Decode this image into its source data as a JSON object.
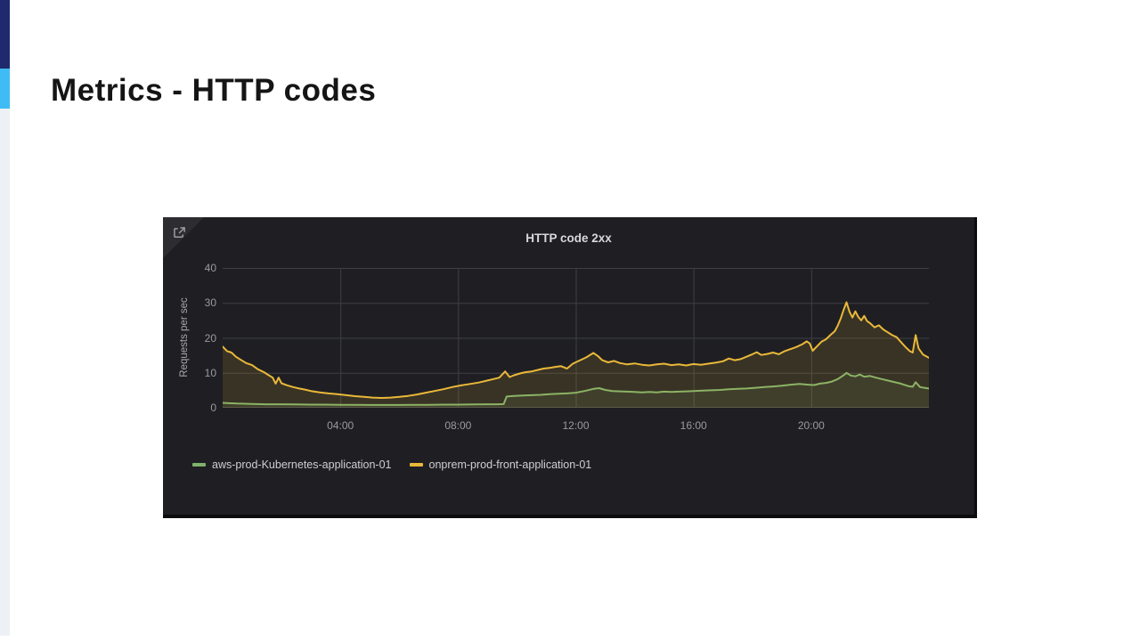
{
  "slide": {
    "title": "Metrics - HTTP codes"
  },
  "accent_bar": {
    "navy": "#1e2a6d",
    "blue": "#3fbcf4",
    "gray": "#edf0f4"
  },
  "panel": {
    "background": "#1f1f23",
    "corner_icon": "external-link-icon",
    "title": "HTTP code 2xx"
  },
  "chart_data": {
    "type": "area",
    "title": "HTTP code 2xx",
    "xlabel": "",
    "ylabel": "Requests per sec",
    "x_unit": "hours",
    "xlim": [
      0,
      24
    ],
    "ylim": [
      0,
      40
    ],
    "grid": true,
    "legend_position": "bottom-left",
    "y_ticks": [
      {
        "value": 0,
        "label": "0"
      },
      {
        "value": 10,
        "label": "10"
      },
      {
        "value": 20,
        "label": "20"
      },
      {
        "value": 30,
        "label": "30"
      },
      {
        "value": 40,
        "label": "40"
      }
    ],
    "x_ticks": [
      {
        "value": 4,
        "label": "04:00"
      },
      {
        "value": 8,
        "label": "08:00"
      },
      {
        "value": 12,
        "label": "12:00"
      },
      {
        "value": 16,
        "label": "16:00"
      },
      {
        "value": 20,
        "label": "20:00"
      }
    ],
    "grid_color": "#3e3f44",
    "axis_color": "#44454a",
    "tick_color": "#9a9b9e",
    "series": [
      {
        "name": "aws-prod-Kubernetes-application-01",
        "color": "#7eb26d",
        "fill_opacity": 0.1,
        "points": [
          [
            0,
            1.4
          ],
          [
            0.5,
            1.2
          ],
          [
            1,
            1.1
          ],
          [
            1.5,
            1.0
          ],
          [
            2,
            1.0
          ],
          [
            2.5,
            0.95
          ],
          [
            3,
            0.9
          ],
          [
            3.5,
            0.9
          ],
          [
            4,
            0.85
          ],
          [
            4.5,
            0.85
          ],
          [
            5,
            0.8
          ],
          [
            5.5,
            0.8
          ],
          [
            6,
            0.8
          ],
          [
            6.5,
            0.85
          ],
          [
            7,
            0.85
          ],
          [
            7.5,
            0.9
          ],
          [
            8,
            0.9
          ],
          [
            8.5,
            0.95
          ],
          [
            9,
            1.0
          ],
          [
            9.3,
            1.0
          ],
          [
            9.55,
            1.05
          ],
          [
            9.65,
            3.2
          ],
          [
            9.9,
            3.4
          ],
          [
            10.2,
            3.5
          ],
          [
            10.5,
            3.6
          ],
          [
            10.8,
            3.7
          ],
          [
            11.1,
            3.9
          ],
          [
            11.4,
            4.0
          ],
          [
            11.7,
            4.1
          ],
          [
            12.0,
            4.3
          ],
          [
            12.3,
            4.8
          ],
          [
            12.6,
            5.4
          ],
          [
            12.8,
            5.6
          ],
          [
            13.0,
            5.1
          ],
          [
            13.25,
            4.8
          ],
          [
            13.5,
            4.7
          ],
          [
            13.75,
            4.6
          ],
          [
            14,
            4.5
          ],
          [
            14.25,
            4.4
          ],
          [
            14.5,
            4.5
          ],
          [
            14.75,
            4.4
          ],
          [
            15,
            4.6
          ],
          [
            15.25,
            4.5
          ],
          [
            15.5,
            4.6
          ],
          [
            15.75,
            4.7
          ],
          [
            16,
            4.8
          ],
          [
            16.3,
            4.9
          ],
          [
            16.6,
            5.0
          ],
          [
            16.9,
            5.1
          ],
          [
            17.2,
            5.3
          ],
          [
            17.5,
            5.4
          ],
          [
            17.8,
            5.5
          ],
          [
            18.1,
            5.7
          ],
          [
            18.4,
            5.9
          ],
          [
            18.7,
            6.1
          ],
          [
            19.0,
            6.3
          ],
          [
            19.3,
            6.6
          ],
          [
            19.6,
            6.8
          ],
          [
            19.9,
            6.6
          ],
          [
            20.1,
            6.5
          ],
          [
            20.3,
            6.9
          ],
          [
            20.5,
            7.1
          ],
          [
            20.7,
            7.5
          ],
          [
            20.9,
            8.2
          ],
          [
            21.1,
            9.3
          ],
          [
            21.2,
            10.0
          ],
          [
            21.35,
            9.2
          ],
          [
            21.5,
            9.0
          ],
          [
            21.65,
            9.5
          ],
          [
            21.8,
            8.9
          ],
          [
            22.0,
            9.1
          ],
          [
            22.2,
            8.6
          ],
          [
            22.4,
            8.2
          ],
          [
            22.6,
            7.8
          ],
          [
            22.8,
            7.4
          ],
          [
            23.0,
            7.0
          ],
          [
            23.15,
            6.6
          ],
          [
            23.3,
            6.2
          ],
          [
            23.45,
            6.0
          ],
          [
            23.55,
            7.3
          ],
          [
            23.7,
            5.9
          ],
          [
            23.85,
            5.7
          ],
          [
            24,
            5.5
          ]
        ]
      },
      {
        "name": "onprem-prod-front-application-01",
        "color": "#eab839",
        "fill_opacity": 0.13,
        "points": [
          [
            0,
            17.5
          ],
          [
            0.15,
            16.2
          ],
          [
            0.3,
            15.8
          ],
          [
            0.45,
            14.6
          ],
          [
            0.6,
            13.8
          ],
          [
            0.8,
            12.8
          ],
          [
            1.0,
            12.2
          ],
          [
            1.2,
            11.0
          ],
          [
            1.4,
            10.2
          ],
          [
            1.55,
            9.4
          ],
          [
            1.7,
            8.6
          ],
          [
            1.8,
            6.9
          ],
          [
            1.9,
            8.6
          ],
          [
            2.0,
            7.0
          ],
          [
            2.2,
            6.4
          ],
          [
            2.4,
            5.9
          ],
          [
            2.6,
            5.5
          ],
          [
            2.8,
            5.2
          ],
          [
            3.0,
            4.8
          ],
          [
            3.3,
            4.4
          ],
          [
            3.6,
            4.1
          ],
          [
            3.9,
            3.9
          ],
          [
            4.2,
            3.6
          ],
          [
            4.5,
            3.3
          ],
          [
            4.8,
            3.1
          ],
          [
            5.1,
            2.9
          ],
          [
            5.4,
            2.8
          ],
          [
            5.7,
            2.9
          ],
          [
            6.0,
            3.1
          ],
          [
            6.3,
            3.4
          ],
          [
            6.6,
            3.8
          ],
          [
            6.9,
            4.3
          ],
          [
            7.2,
            4.8
          ],
          [
            7.5,
            5.3
          ],
          [
            7.8,
            5.9
          ],
          [
            8.1,
            6.4
          ],
          [
            8.4,
            6.8
          ],
          [
            8.7,
            7.2
          ],
          [
            9.0,
            7.8
          ],
          [
            9.2,
            8.2
          ],
          [
            9.4,
            8.6
          ],
          [
            9.6,
            10.4
          ],
          [
            9.75,
            8.8
          ],
          [
            9.9,
            9.3
          ],
          [
            10.1,
            9.8
          ],
          [
            10.3,
            10.2
          ],
          [
            10.5,
            10.4
          ],
          [
            10.7,
            10.8
          ],
          [
            10.9,
            11.2
          ],
          [
            11.1,
            11.4
          ],
          [
            11.3,
            11.7
          ],
          [
            11.5,
            11.9
          ],
          [
            11.7,
            11.2
          ],
          [
            11.9,
            12.6
          ],
          [
            12.1,
            13.4
          ],
          [
            12.35,
            14.4
          ],
          [
            12.6,
            15.7
          ],
          [
            12.75,
            14.8
          ],
          [
            12.9,
            13.6
          ],
          [
            13.1,
            13.0
          ],
          [
            13.3,
            13.4
          ],
          [
            13.5,
            12.8
          ],
          [
            13.75,
            12.4
          ],
          [
            14.0,
            12.7
          ],
          [
            14.25,
            12.3
          ],
          [
            14.5,
            12.1
          ],
          [
            14.75,
            12.4
          ],
          [
            15.0,
            12.6
          ],
          [
            15.25,
            12.2
          ],
          [
            15.5,
            12.4
          ],
          [
            15.75,
            12.1
          ],
          [
            16.0,
            12.5
          ],
          [
            16.25,
            12.3
          ],
          [
            16.5,
            12.6
          ],
          [
            16.75,
            12.9
          ],
          [
            17.0,
            13.3
          ],
          [
            17.2,
            14.1
          ],
          [
            17.4,
            13.6
          ],
          [
            17.6,
            13.9
          ],
          [
            17.8,
            14.6
          ],
          [
            18.0,
            15.3
          ],
          [
            18.15,
            15.9
          ],
          [
            18.3,
            15.1
          ],
          [
            18.5,
            15.4
          ],
          [
            18.7,
            15.8
          ],
          [
            18.9,
            15.3
          ],
          [
            19.1,
            16.2
          ],
          [
            19.3,
            16.8
          ],
          [
            19.5,
            17.4
          ],
          [
            19.7,
            18.2
          ],
          [
            19.85,
            19.0
          ],
          [
            19.95,
            18.4
          ],
          [
            20.05,
            16.3
          ],
          [
            20.2,
            17.6
          ],
          [
            20.35,
            18.9
          ],
          [
            20.5,
            19.6
          ],
          [
            20.65,
            20.8
          ],
          [
            20.8,
            21.9
          ],
          [
            20.9,
            23.5
          ],
          [
            21.0,
            25.5
          ],
          [
            21.1,
            28.0
          ],
          [
            21.2,
            30.2
          ],
          [
            21.3,
            27.5
          ],
          [
            21.4,
            25.8
          ],
          [
            21.5,
            27.6
          ],
          [
            21.6,
            26.0
          ],
          [
            21.7,
            25.0
          ],
          [
            21.8,
            26.3
          ],
          [
            21.9,
            24.8
          ],
          [
            22.0,
            24.2
          ],
          [
            22.15,
            23.0
          ],
          [
            22.3,
            23.6
          ],
          [
            22.45,
            22.4
          ],
          [
            22.6,
            21.6
          ],
          [
            22.75,
            20.8
          ],
          [
            22.9,
            20.2
          ],
          [
            23.05,
            18.8
          ],
          [
            23.2,
            17.4
          ],
          [
            23.35,
            16.2
          ],
          [
            23.45,
            15.8
          ],
          [
            23.55,
            20.8
          ],
          [
            23.65,
            17.0
          ],
          [
            23.8,
            15.2
          ],
          [
            24,
            14.3
          ]
        ]
      }
    ]
  }
}
